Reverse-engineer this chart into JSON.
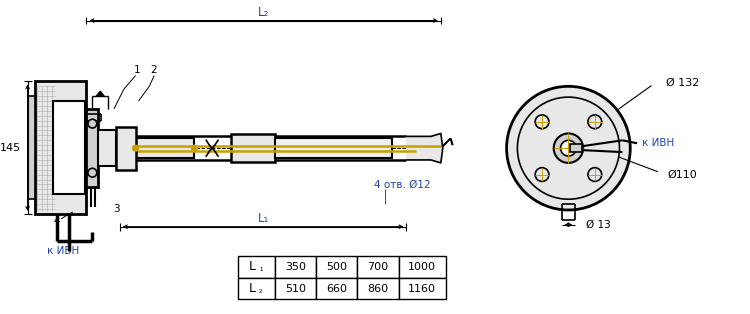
{
  "bg_color": "#ffffff",
  "line_color": "#000000",
  "gold_color": "#c8a000",
  "blue_color": "#2244aa",
  "table_L1": [
    "L₁",
    "350",
    "500",
    "700",
    "1000"
  ],
  "table_L2": [
    "L₂",
    "510",
    "660",
    "860",
    "1160"
  ],
  "dim_145": "145",
  "dim_L1": "L₁",
  "dim_L2": "L₂",
  "label_1": "1",
  "label_2": "2",
  "label_3": "3",
  "label_4": "4",
  "label_k_ivn": "к ИВН",
  "label_4otv": "4 отв. Ø12",
  "label_d132": "Ø 132",
  "label_d110": "Ø110",
  "label_d13": "Ø 13",
  "hatch_color": "#888888",
  "gray_light": "#e8e8e8",
  "gray_mid": "#d0d0d0",
  "gray_dark": "#aaaaaa"
}
